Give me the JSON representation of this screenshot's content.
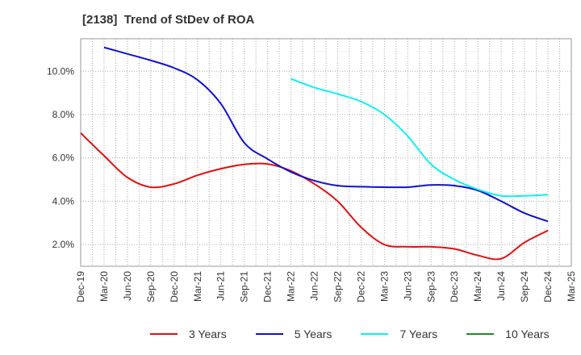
{
  "chart_data": {
    "type": "line",
    "title": "[2138]  Trend of StDev of ROA",
    "xlabel": "",
    "ylabel": "",
    "ylim": [
      1.0,
      11.5
    ],
    "yticks": [
      2.0,
      4.0,
      6.0,
      8.0,
      10.0
    ],
    "ytick_labels": [
      "2.0%",
      "4.0%",
      "6.0%",
      "8.0%",
      "10.0%"
    ],
    "categories": [
      "Dec-19",
      "Mar-20",
      "Jun-20",
      "Sep-20",
      "Dec-20",
      "Mar-21",
      "Jun-21",
      "Sep-21",
      "Dec-21",
      "Mar-22",
      "Jun-22",
      "Sep-22",
      "Dec-22",
      "Mar-23",
      "Jun-23",
      "Sep-23",
      "Dec-23",
      "Mar-24",
      "Jun-24",
      "Sep-24",
      "Dec-24",
      "Mar-25"
    ],
    "grid": true,
    "legend_position": "bottom",
    "series": [
      {
        "name": "3 Years",
        "color": "#dd1111",
        "values": [
          7.15,
          6.1,
          5.1,
          4.65,
          4.8,
          5.2,
          5.5,
          5.7,
          5.72,
          5.4,
          4.8,
          4.0,
          2.8,
          2.0,
          1.9,
          1.9,
          1.8,
          1.5,
          1.35,
          2.1,
          2.65,
          null
        ]
      },
      {
        "name": "5 Years",
        "color": "#1111cc",
        "values": [
          null,
          11.1,
          10.8,
          10.5,
          10.15,
          9.6,
          8.5,
          6.7,
          5.95,
          5.35,
          4.95,
          4.72,
          4.67,
          4.65,
          4.65,
          4.75,
          4.72,
          4.5,
          4.0,
          3.45,
          3.07,
          null
        ]
      },
      {
        "name": "7 Years",
        "color": "#11eeee",
        "values": [
          null,
          null,
          null,
          null,
          null,
          null,
          null,
          null,
          null,
          9.65,
          9.25,
          8.95,
          8.6,
          8.0,
          7.0,
          5.7,
          5.0,
          4.55,
          4.25,
          4.25,
          4.3,
          null
        ]
      },
      {
        "name": "10 Years",
        "color": "#228822",
        "values": [
          null,
          null,
          null,
          null,
          null,
          null,
          null,
          null,
          null,
          null,
          null,
          null,
          null,
          null,
          null,
          null,
          null,
          null,
          null,
          null,
          null,
          null
        ]
      }
    ]
  }
}
